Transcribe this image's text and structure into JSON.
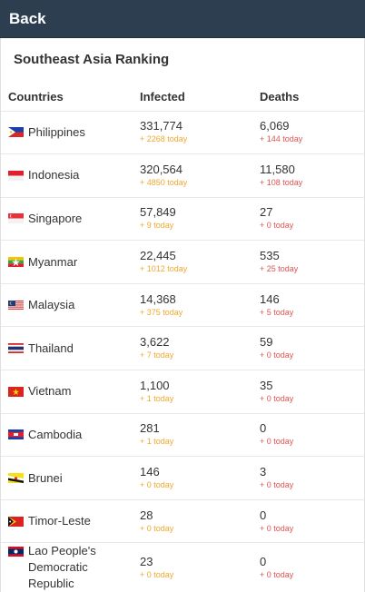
{
  "topbar": {
    "back_label": "Back"
  },
  "section_title": "Southeast Asia Ranking",
  "table": {
    "headers": {
      "countries": "Countries",
      "infected": "Infected",
      "deaths": "Deaths"
    },
    "rows": [
      {
        "country": "Philippines",
        "flag": "philippines-flag-icon",
        "infected": "331,774",
        "infected_today": "+ 2268 today",
        "deaths": "6,069",
        "deaths_today": "+ 144 today"
      },
      {
        "country": "Indonesia",
        "flag": "indonesia-flag-icon",
        "infected": "320,564",
        "infected_today": "+ 4850 today",
        "deaths": "11,580",
        "deaths_today": "+ 108 today"
      },
      {
        "country": "Singapore",
        "flag": "singapore-flag-icon",
        "infected": "57,849",
        "infected_today": "+ 9 today",
        "deaths": "27",
        "deaths_today": "+ 0 today"
      },
      {
        "country": "Myanmar",
        "flag": "myanmar-flag-icon",
        "infected": "22,445",
        "infected_today": "+ 1012 today",
        "deaths": "535",
        "deaths_today": "+ 25 today"
      },
      {
        "country": "Malaysia",
        "flag": "malaysia-flag-icon",
        "infected": "14,368",
        "infected_today": "+ 375 today",
        "deaths": "146",
        "deaths_today": "+ 5 today"
      },
      {
        "country": "Thailand",
        "flag": "thailand-flag-icon",
        "infected": "3,622",
        "infected_today": "+ 7 today",
        "deaths": "59",
        "deaths_today": "+ 0 today"
      },
      {
        "country": "Vietnam",
        "flag": "vietnam-flag-icon",
        "infected": "1,100",
        "infected_today": "+ 1 today",
        "deaths": "35",
        "deaths_today": "+ 0 today"
      },
      {
        "country": "Cambodia",
        "flag": "cambodia-flag-icon",
        "infected": "281",
        "infected_today": "+ 1 today",
        "deaths": "0",
        "deaths_today": "+ 0 today"
      },
      {
        "country": "Brunei",
        "flag": "brunei-flag-icon",
        "infected": "146",
        "infected_today": "+ 0 today",
        "deaths": "3",
        "deaths_today": "+ 0 today"
      },
      {
        "country": "Timor-Leste",
        "flag": "timor-leste-flag-icon",
        "infected": "28",
        "infected_today": "+ 0 today",
        "deaths": "0",
        "deaths_today": "+ 0 today"
      },
      {
        "country": "Lao People's Democratic Republic",
        "flag": "laos-flag-icon",
        "infected": "23",
        "infected_today": "+ 0 today",
        "deaths": "0",
        "deaths_today": "+ 0 today"
      }
    ]
  },
  "colors": {
    "topbar": "#2c3e50",
    "infected_today": "#f0a830",
    "deaths_today": "#e05454"
  }
}
